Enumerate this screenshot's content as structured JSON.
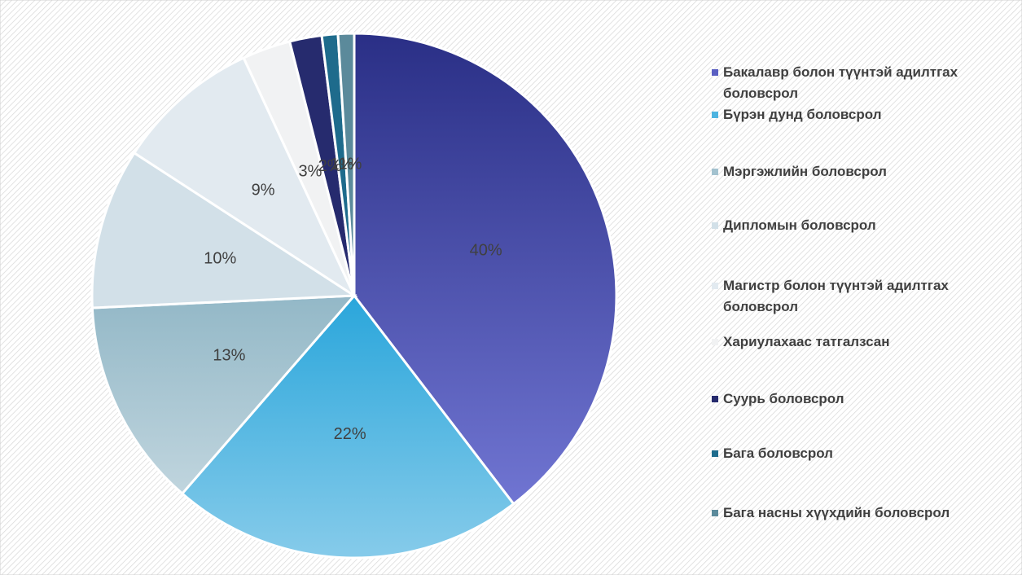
{
  "chart_data": {
    "type": "pie",
    "categories": [
      "Бакалавр болон түүнтэй адилтгах боловсрол",
      "Бүрэн дунд боловсрол",
      "Мэргэжлийн боловсрол",
      "Дипломын боловсрол",
      "Магистр болон түүнтэй адилтгах боловсрол",
      "Хариулахаас татгалзсан",
      "Суурь боловсрол",
      "Бага боловсрол",
      "Бага насны хүүхдийн боловсрол"
    ],
    "values": [
      40,
      22,
      13,
      10,
      9,
      3,
      2,
      1,
      1
    ],
    "value_labels": [
      "40%",
      "22%",
      "13%",
      "10%",
      "9%",
      "3%",
      "2%",
      "1%",
      "1%"
    ],
    "colors": [
      "#5a5fc2",
      "#4db3e0",
      "#a3c2cf",
      "#d2e0e8",
      "#e2eaf0",
      "#f1f2f3",
      "#262b6e",
      "#1e6b8c",
      "#5b8a9b"
    ],
    "legend": "right"
  }
}
